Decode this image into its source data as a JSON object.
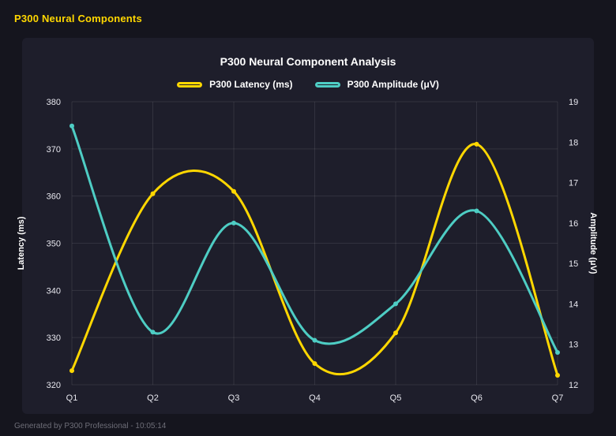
{
  "page": {
    "title": "P300 Neural Components",
    "footer": "Generated by P300 Professional - 10:05:14"
  },
  "colors": {
    "background": "#15151e",
    "panel": "#1e1e2b",
    "app_title": "#ffd700",
    "grid": "rgba(255,255,255,0.09)",
    "tick_text": "#e7e7ee",
    "axis_title_text": "#ffffff",
    "latency_series": "#ffd700",
    "amplitude_series": "#4ecdc4"
  },
  "chart_data": {
    "type": "line",
    "title": "P300 Neural Component Analysis",
    "categories": [
      "Q1",
      "Q2",
      "Q3",
      "Q4",
      "Q5",
      "Q6",
      "Q7"
    ],
    "series": [
      {
        "name": "P300 Latency (ms)",
        "color": "#ffd700",
        "axis": "left",
        "values": [
          323,
          360.5,
          361,
          324.5,
          331,
          371,
          322
        ]
      },
      {
        "name": "P300 Amplitude (μV)",
        "color": "#4ecdc4",
        "axis": "right",
        "values": [
          18.4,
          13.3,
          16.0,
          13.1,
          14.0,
          16.3,
          12.8
        ]
      }
    ],
    "axes": {
      "left": {
        "label": "Latency (ms)",
        "min": 320,
        "max": 380,
        "step": 10
      },
      "right": {
        "label": "Amplitude (μV)",
        "min": 12,
        "max": 19,
        "step": 1
      }
    },
    "legend_position": "top",
    "grid": true,
    "smooth": true
  }
}
